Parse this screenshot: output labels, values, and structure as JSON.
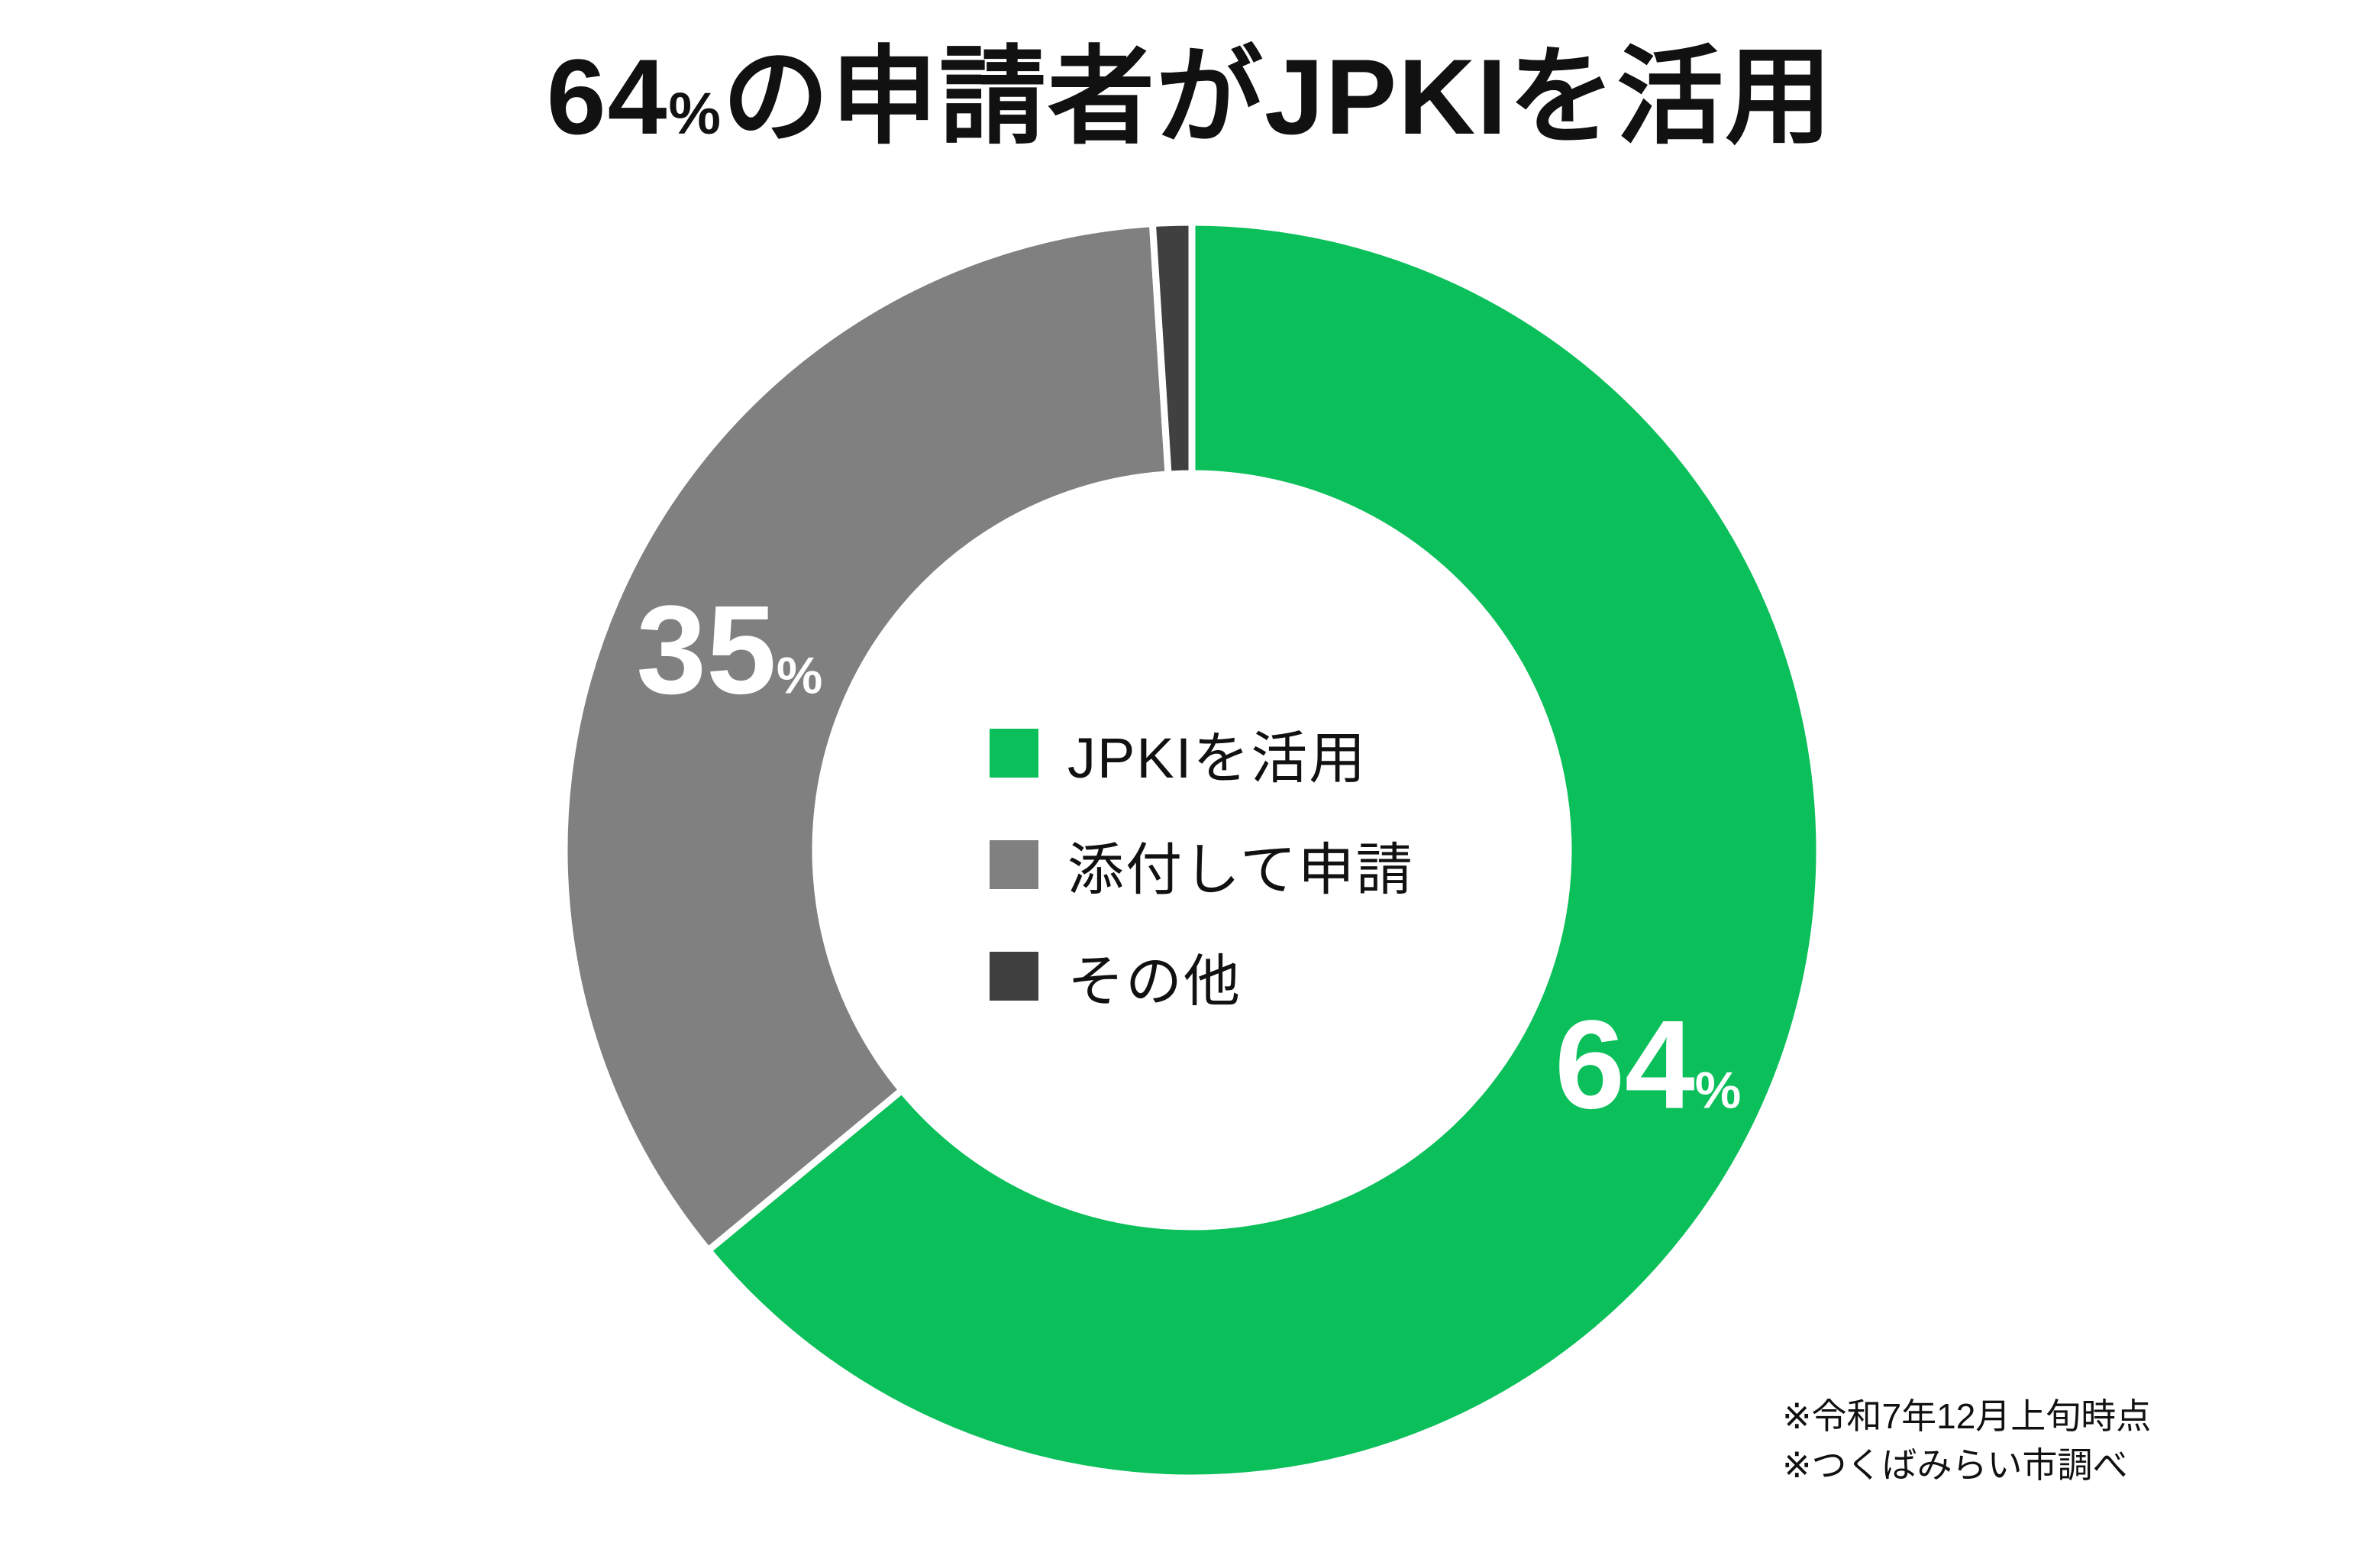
{
  "header": {
    "number": "64",
    "percent_sign": "%",
    "rest": "の申請者がJPKIを活用"
  },
  "chart_data": {
    "type": "pie",
    "subtype": "donut",
    "title": "64%の申請者がJPKIを活用",
    "start_angle_deg": 0,
    "direction": "clockwise",
    "legend_position": "center",
    "background_color": "#ffffff",
    "gap_color": "#ffffff",
    "segments": [
      {
        "label": "JPKIを活用",
        "value": 64,
        "color": "#0bbf5a",
        "data_label": {
          "number": "64",
          "suffix": "%"
        }
      },
      {
        "label": "添付して申請",
        "value": 35,
        "color": "#808080",
        "data_label": {
          "number": "35",
          "suffix": "%"
        }
      },
      {
        "label": "その他",
        "value": 1,
        "color": "#404040",
        "data_label": null
      }
    ]
  },
  "notes": {
    "line1": "※令和7年12月上旬時点",
    "line2": "※つくばみらい市調べ"
  }
}
